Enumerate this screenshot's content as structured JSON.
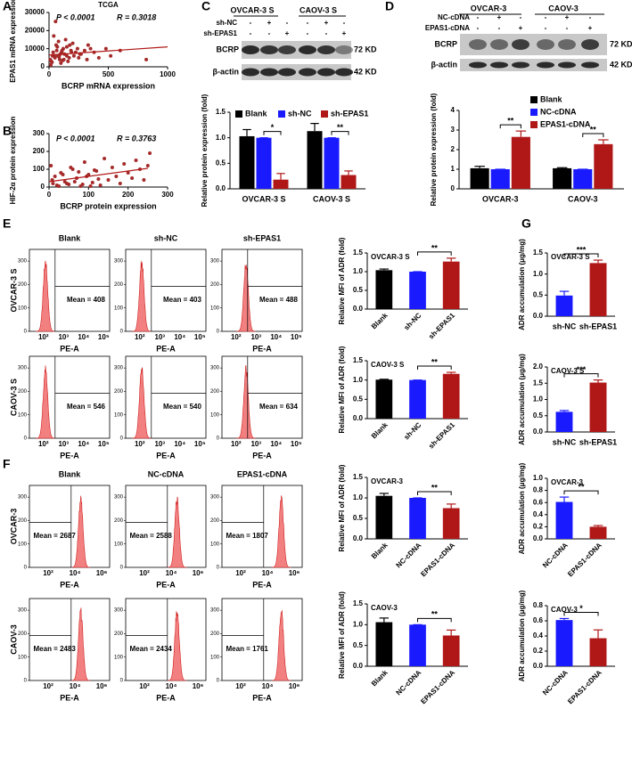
{
  "panel_labels": [
    "A",
    "B",
    "C",
    "D",
    "E",
    "F",
    "G"
  ],
  "chart_data": [
    {
      "type": "scatter",
      "title": "TCGA",
      "annotations": [
        "P < 0.0001",
        "R = 0.3018"
      ],
      "xlabel": "BCRP mRNA expression",
      "ylabel": "EPAS1 mRNA expression",
      "color": "#a52a2a",
      "xlim": [
        0,
        1000
      ],
      "xticks": [
        0,
        500,
        1000
      ],
      "ylim": [
        0,
        30000
      ],
      "yticks": [
        0,
        10000,
        20000,
        30000
      ],
      "x": [
        20,
        35,
        50,
        60,
        75,
        90,
        110,
        130,
        150,
        170,
        190,
        210,
        240,
        270,
        300,
        330,
        380,
        420,
        480,
        520,
        600,
        820,
        40,
        55,
        80,
        100,
        120,
        140,
        160,
        200,
        250,
        320,
        30,
        65,
        95,
        125,
        175,
        225,
        15,
        45,
        70,
        105,
        150,
        185,
        260,
        350,
        10,
        25,
        85,
        115
      ],
      "y": [
        3000,
        8000,
        5000,
        12000,
        6000,
        4000,
        9000,
        7000,
        11000,
        5000,
        8000,
        6000,
        10000,
        7000,
        9000,
        12000,
        8000,
        5000,
        10000,
        6000,
        9000,
        4000,
        17000,
        25000,
        14000,
        2000,
        10000,
        15000,
        3000,
        13000,
        5000,
        4000,
        6000,
        9000,
        7000,
        4000,
        12000,
        8000,
        1000,
        6000,
        11000,
        8000,
        6000,
        9000,
        7000,
        10000,
        4000,
        2500,
        5500,
        3500
      ],
      "trend": {
        "x": [
          0,
          1000
        ],
        "y": [
          6500,
          11000
        ]
      }
    },
    {
      "type": "scatter",
      "annotations": [
        "P < 0.0001",
        "R = 0.3763"
      ],
      "xlabel": "BCRP protein expression",
      "ylabel": "HIF-2α protein expression",
      "color": "#a52a2a",
      "xlim": [
        0,
        300
      ],
      "xticks": [
        0,
        100,
        200,
        300
      ],
      "ylim": [
        0,
        300
      ],
      "yticks": [
        0,
        100,
        200,
        300
      ],
      "x": [
        5,
        10,
        15,
        20,
        30,
        40,
        50,
        60,
        70,
        80,
        90,
        100,
        110,
        120,
        130,
        140,
        150,
        160,
        170,
        180,
        190,
        200,
        210,
        220,
        230,
        240,
        250,
        255,
        8,
        25,
        35,
        45,
        55,
        65,
        75,
        85,
        95,
        105,
        115,
        125
      ],
      "y": [
        120,
        20,
        60,
        10,
        80,
        30,
        15,
        100,
        50,
        5,
        140,
        70,
        25,
        90,
        10,
        160,
        40,
        110,
        60,
        20,
        130,
        80,
        50,
        150,
        100,
        40,
        120,
        190,
        40,
        5,
        70,
        20,
        110,
        30,
        85,
        15,
        60,
        5,
        95,
        45
      ],
      "trend": {
        "x": [
          0,
          250
        ],
        "y": [
          30,
          105
        ]
      }
    },
    {
      "type": "bar",
      "categories": [
        "OVCAR-3 S",
        "CAOV-3 S"
      ],
      "ylabel": "Relative protein expression (fold)",
      "series": [
        {
          "name": "Blank",
          "color": "#000000",
          "values": [
            1.03,
            1.13
          ],
          "errors": [
            0.13,
            0.15
          ]
        },
        {
          "name": "sh-NC",
          "color": "#1a1aff",
          "values": [
            1.0,
            1.0
          ],
          "errors": [
            0,
            0
          ]
        },
        {
          "name": "sh-EPAS1",
          "color": "#b01818",
          "values": [
            0.18,
            0.27
          ],
          "errors": [
            0.12,
            0.08
          ]
        }
      ],
      "ylim": [
        0,
        1.5
      ],
      "yticks": [
        {
          "value": 0,
          "label": "0.0"
        },
        {
          "value": 0.5,
          "label": "0.5"
        },
        {
          "value": 1,
          "label": "1.0"
        },
        {
          "value": 1.5,
          "label": "1.5"
        }
      ],
      "annotations": [
        "*",
        "**"
      ]
    },
    {
      "type": "bar",
      "categories": [
        "OVCAR-3",
        "CAOV-3"
      ],
      "ylabel": "Relative protein expression (fold)",
      "series": [
        {
          "name": "Blank",
          "color": "#000000",
          "values": [
            1.05,
            1.05
          ],
          "errors": [
            0.1,
            0.03
          ]
        },
        {
          "name": "NC-cDNA",
          "color": "#1a1aff",
          "values": [
            1.0,
            1.0
          ],
          "errors": [
            0,
            0
          ]
        },
        {
          "name": "EPAS1-cDNA",
          "color": "#b01818",
          "values": [
            2.65,
            2.28
          ],
          "errors": [
            0.3,
            0.22
          ]
        }
      ],
      "ylim": [
        0,
        4
      ],
      "yticks": [
        0,
        1,
        2,
        3,
        4
      ],
      "annotations": [
        "**",
        "**"
      ]
    },
    {
      "type": "bar",
      "title": "OVCAR-3 S",
      "categories": [
        "Blank",
        "sh-NC",
        "sh-EPAS1"
      ],
      "values": [
        1.04,
        1.0,
        1.27
      ],
      "errors": [
        0.03,
        0,
        0.09
      ],
      "colors": [
        "#000000",
        "#1a1aff",
        "#b01818"
      ],
      "ylabel": "Relative MFI of ADR (fold)",
      "ylim": [
        0,
        1.5
      ],
      "yticks": [
        {
          "value": 0,
          "label": "0.0"
        },
        {
          "value": 0.5,
          "label": "0.5"
        },
        {
          "value": 1,
          "label": "1.0"
        },
        {
          "value": 1.5,
          "label": "1.5"
        }
      ],
      "annotations": [
        "**"
      ]
    },
    {
      "type": "bar",
      "title": "CAOV-3 S",
      "categories": [
        "Blank",
        "sh-NC",
        "sh-EPAS1"
      ],
      "values": [
        1.01,
        1.0,
        1.16
      ],
      "errors": [
        0.01,
        0,
        0.04
      ],
      "colors": [
        "#000000",
        "#1a1aff",
        "#b01818"
      ],
      "ylabel": "Relative MFI of ADR (fold)",
      "ylim": [
        0,
        1.5
      ],
      "yticks": [
        {
          "value": 0,
          "label": "0.0"
        },
        {
          "value": 0.5,
          "label": "0.5"
        },
        {
          "value": 1,
          "label": "1.0"
        },
        {
          "value": 1.5,
          "label": "1.5"
        }
      ],
      "annotations": [
        "**"
      ]
    },
    {
      "type": "bar",
      "title": "OVCAR-3",
      "categories": [
        "Blank",
        "NC-cDNA",
        "EPAS1-cDNA"
      ],
      "values": [
        1.05,
        1.0,
        0.75
      ],
      "errors": [
        0.06,
        0,
        0.1
      ],
      "colors": [
        "#000000",
        "#1a1aff",
        "#b01818"
      ],
      "ylabel": "Relative MFI of ADR (fold)",
      "ylim": [
        0,
        1.5
      ],
      "yticks": [
        {
          "value": 0,
          "label": "0.0"
        },
        {
          "value": 0.5,
          "label": "0.5"
        },
        {
          "value": 1,
          "label": "1.0"
        },
        {
          "value": 1.5,
          "label": "1.5"
        }
      ],
      "annotations": [
        "**"
      ]
    },
    {
      "type": "bar",
      "title": "CAOV-3",
      "categories": [
        "Blank",
        "NC-cDNA",
        "EPAS1-cDNA"
      ],
      "values": [
        1.06,
        1.0,
        0.74
      ],
      "errors": [
        0.1,
        0,
        0.13
      ],
      "colors": [
        "#000000",
        "#1a1aff",
        "#b01818"
      ],
      "ylabel": "Relative MFI of ADR (fold)",
      "ylim": [
        0,
        1.5
      ],
      "yticks": [
        {
          "value": 0,
          "label": "0.0"
        },
        {
          "value": 0.5,
          "label": "0.5"
        },
        {
          "value": 1,
          "label": "1.0"
        },
        {
          "value": 1.5,
          "label": "1.5"
        }
      ],
      "annotations": [
        "**"
      ]
    },
    {
      "type": "bar",
      "title": "OVCAR-3 S",
      "categories": [
        "sh-NC",
        "sh-EPAS1"
      ],
      "values": [
        0.49,
        1.26
      ],
      "errors": [
        0.1,
        0.07
      ],
      "colors": [
        "#1a1aff",
        "#b01818"
      ],
      "ylabel": "ADR accumulation (μg/mg)",
      "ylim": [
        0,
        1.5
      ],
      "yticks": [
        {
          "value": 0,
          "label": "0.0"
        },
        {
          "value": 0.5,
          "label": "0.5"
        },
        {
          "value": 1,
          "label": "1.0"
        },
        {
          "value": 1.5,
          "label": "1.5"
        }
      ],
      "annotations": [
        "***"
      ]
    },
    {
      "type": "bar",
      "title": "CAOV-3 S",
      "categories": [
        "sh-NC",
        "sh-EPAS1"
      ],
      "values": [
        0.62,
        1.52
      ],
      "errors": [
        0.04,
        0.08
      ],
      "colors": [
        "#1a1aff",
        "#b01818"
      ],
      "ylabel": "ADR accumulation (μg/mg)",
      "ylim": [
        0,
        2
      ],
      "yticks": [
        {
          "value": 0,
          "label": "0.0"
        },
        {
          "value": 0.5,
          "label": "0.5"
        },
        {
          "value": 1,
          "label": "1.0"
        },
        {
          "value": 1.5,
          "label": "1.5"
        },
        {
          "value": 2,
          "label": "2.0"
        }
      ],
      "annotations": [
        "***"
      ]
    },
    {
      "type": "bar",
      "title": "OVCAR-3",
      "categories": [
        "NC-cDNA",
        "EPAS1-cDNA"
      ],
      "values": [
        0.61,
        0.2
      ],
      "errors": [
        0.08,
        0.02
      ],
      "colors": [
        "#1a1aff",
        "#b01818"
      ],
      "ylabel": "ADR accumulation (μg/mg)",
      "ylim": [
        0,
        1
      ],
      "yticks": [
        {
          "value": 0,
          "label": "0.0"
        },
        {
          "value": 0.2,
          "label": "0.2"
        },
        {
          "value": 0.4,
          "label": "0.4"
        },
        {
          "value": 0.6,
          "label": "0.6"
        },
        {
          "value": 0.8,
          "label": "0.8"
        },
        {
          "value": 1,
          "label": "1.0"
        }
      ],
      "annotations": [
        "**"
      ]
    },
    {
      "type": "bar",
      "title": "CAOV-3",
      "categories": [
        "NC-cDNA",
        "EPAS1-cDNA"
      ],
      "values": [
        0.61,
        0.37
      ],
      "errors": [
        0.02,
        0.11
      ],
      "colors": [
        "#1a1aff",
        "#b01818"
      ],
      "ylabel": "ADR accumulation (μg/mg)",
      "ylim": [
        0,
        0.8
      ],
      "yticks": [
        {
          "value": 0,
          "label": "0.0"
        },
        {
          "value": 0.2,
          "label": "0.2"
        },
        {
          "value": 0.4,
          "label": "0.4"
        },
        {
          "value": 0.6,
          "label": "0.6"
        },
        {
          "value": 0.8,
          "label": "0.8"
        }
      ],
      "annotations": [
        "*"
      ]
    }
  ],
  "blots": [
    {
      "headers": [
        "OVCAR-3 S",
        "CAOV-3 S"
      ],
      "rows": [
        {
          "label": "sh-NC",
          "signs": [
            "-",
            "+",
            "-",
            "-",
            "+",
            "-"
          ]
        },
        {
          "label": "sh-EPAS1",
          "signs": [
            "-",
            "-",
            "+",
            "-",
            "-",
            "+"
          ]
        }
      ],
      "bands": [
        {
          "label": "BCRP",
          "size": "72 KD"
        },
        {
          "label": "β-actin",
          "size": "42 KD"
        }
      ]
    },
    {
      "headers": [
        "OVCAR-3",
        "CAOV-3"
      ],
      "rows": [
        {
          "label": "NC-cDNA",
          "signs": [
            "-",
            "+",
            "-",
            "-",
            "+",
            "-"
          ]
        },
        {
          "label": "EPAS1-cDNA",
          "signs": [
            "-",
            "-",
            "+",
            "-",
            "-",
            "+"
          ]
        }
      ],
      "bands": [
        {
          "label": "BCRP",
          "size": "72 KD"
        },
        {
          "label": "β-actin",
          "size": "42 KD"
        }
      ]
    }
  ],
  "flow": [
    {
      "columns": [
        "Blank",
        "sh-NC",
        "sh-EPAS1"
      ],
      "xlabel": "PE-A",
      "xticks": [
        "10²",
        "10³",
        "10⁴",
        "10⁵"
      ],
      "ylim": [
        0,
        350
      ],
      "yticks": [
        0,
        100,
        200,
        300
      ],
      "rows": [
        {
          "label": "OVCAR-3 S",
          "means": [
            "Mean = 408",
            "Mean = 403",
            "Mean = 488"
          ]
        },
        {
          "label": "CAOV-3 S",
          "means": [
            "Mean = 546",
            "Mean = 540",
            "Mean = 634"
          ]
        }
      ]
    },
    {
      "columns": [
        "Blank",
        "NC-cDNA",
        "EPAS1-cDNA"
      ],
      "xlabel": "PE-A",
      "xticks": [
        "10²",
        "10⁴",
        "10⁶"
      ],
      "ylim": [
        0,
        350
      ],
      "yticks": [
        0,
        100,
        200,
        300
      ],
      "rows": [
        {
          "label": "OVCAR-3",
          "means": [
            "Mean = 2687",
            "Mean = 2588",
            "Mean = 1807"
          ]
        },
        {
          "label": "CAOV-3",
          "means": [
            "Mean = 2483",
            "Mean = 2434",
            "Mean = 1761"
          ]
        }
      ]
    }
  ]
}
